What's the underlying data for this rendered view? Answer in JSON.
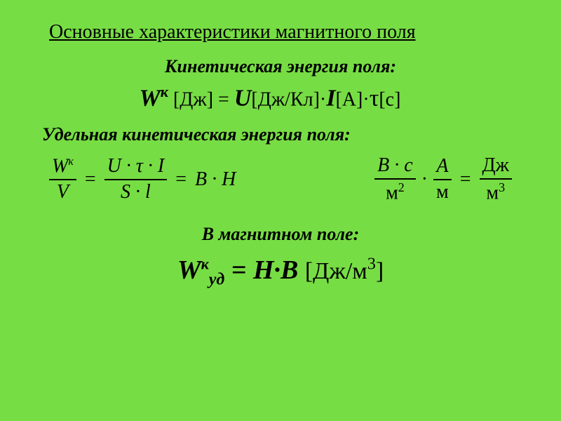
{
  "slide": {
    "background_color": "#77dd44",
    "text_color": "#000000",
    "font_family": "Times New Roman"
  },
  "title": "Основные характеристики магнитного поля",
  "section1": {
    "heading": "Кинетическая энергия поля:",
    "eq": {
      "W": "W",
      "Wsup": "к",
      "unitW": " [Дж] ",
      "eq": "= ",
      "U": "U",
      "unitU": "[Дж/Кл",
      "close1": "]·",
      "I": "I",
      "unitI": "[А]·",
      "tau": "τ",
      "unitTau": "[c]"
    }
  },
  "section2": {
    "heading": "Удельная  кинетическая энергия поля:",
    "left": {
      "f1_num_W": "W",
      "f1_num_sup": "к",
      "f1_den": "V",
      "eq1": "=",
      "f2_num": "U · τ · I",
      "f2_den": "S · l",
      "eq2": "=",
      "rhs": "B · H"
    },
    "right": {
      "f1_num": "B · c",
      "f1_den_m": "м",
      "f1_den_exp": "2",
      "dot": "·",
      "f2_num": "A",
      "f2_den": "м",
      "eq": "=",
      "f3_num": "Дж",
      "f3_den_m": "м",
      "f3_den_exp": "3"
    }
  },
  "section3": {
    "heading": "В магнитном  поле:",
    "eq": {
      "W": "W",
      "sup": "к",
      "sub": "уд",
      "mid": " = H·B ",
      "unit_open": "[Дж/м",
      "unit_exp": "3",
      "unit_close": "]"
    }
  }
}
